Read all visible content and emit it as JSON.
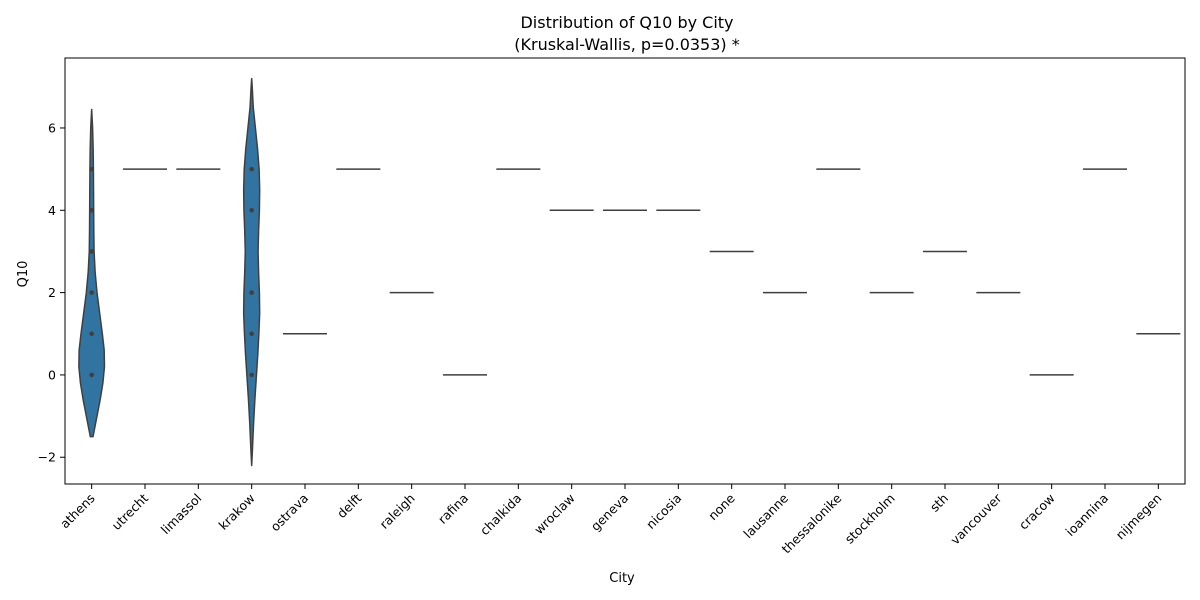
{
  "chart_data": {
    "type": "violin",
    "title": "Distribution of Q10 by City",
    "subtitle": "(Kruskal-Wallis, p=0.0353) *",
    "xlabel": "City",
    "ylabel": "Q10",
    "ylim": [
      -2.65,
      7.7
    ],
    "yticks": [
      -2,
      0,
      2,
      4,
      6
    ],
    "ytick_labels": [
      "−2",
      "0",
      "2",
      "4",
      "6"
    ],
    "grid": false,
    "legend": "none",
    "colors": {
      "fill": "#3274a1",
      "edge": "#3f3f3f",
      "point": "#3f3f3f"
    },
    "categories": [
      "athens",
      "utrecht",
      "limassol",
      "krakow",
      "ostrava",
      "delft",
      "raleigh",
      "rafina",
      "chalkida",
      "wroclaw",
      "geneva",
      "nicosia",
      "none",
      "lausanne",
      "thessalonike",
      "stockholm",
      "sth",
      "vancouver",
      "cracow",
      "ioannina",
      "nijmegen"
    ],
    "violins": [
      {
        "category": "athens",
        "points": [
          0,
          1,
          2,
          3,
          4,
          5
        ],
        "density": [
          {
            "y": -1.5,
            "w": 0.05
          },
          {
            "y": -1.3,
            "w": 0.11
          },
          {
            "y": -1.0,
            "w": 0.2
          },
          {
            "y": -0.6,
            "w": 0.32
          },
          {
            "y": -0.2,
            "w": 0.42
          },
          {
            "y": 0.2,
            "w": 0.48
          },
          {
            "y": 0.6,
            "w": 0.47
          },
          {
            "y": 1.0,
            "w": 0.4
          },
          {
            "y": 1.5,
            "w": 0.3
          },
          {
            "y": 2.0,
            "w": 0.2
          },
          {
            "y": 2.5,
            "w": 0.13
          },
          {
            "y": 3.0,
            "w": 0.09
          },
          {
            "y": 3.5,
            "w": 0.08
          },
          {
            "y": 4.0,
            "w": 0.075
          },
          {
            "y": 4.5,
            "w": 0.07
          },
          {
            "y": 5.0,
            "w": 0.065
          },
          {
            "y": 5.5,
            "w": 0.055
          },
          {
            "y": 6.0,
            "w": 0.035
          },
          {
            "y": 6.45,
            "w": 0.0
          }
        ]
      },
      {
        "category": "krakow",
        "points": [
          0,
          1,
          2,
          4,
          5
        ],
        "density": [
          {
            "y": -2.2,
            "w": 0.0
          },
          {
            "y": -1.8,
            "w": 0.03
          },
          {
            "y": -1.2,
            "w": 0.07
          },
          {
            "y": -0.6,
            "w": 0.12
          },
          {
            "y": 0.0,
            "w": 0.18
          },
          {
            "y": 0.5,
            "w": 0.23
          },
          {
            "y": 1.0,
            "w": 0.27
          },
          {
            "y": 1.5,
            "w": 0.3
          },
          {
            "y": 2.0,
            "w": 0.29
          },
          {
            "y": 2.5,
            "w": 0.26
          },
          {
            "y": 3.0,
            "w": 0.24
          },
          {
            "y": 3.5,
            "w": 0.26
          },
          {
            "y": 4.0,
            "w": 0.29
          },
          {
            "y": 4.5,
            "w": 0.3
          },
          {
            "y": 5.0,
            "w": 0.28
          },
          {
            "y": 5.5,
            "w": 0.22
          },
          {
            "y": 6.0,
            "w": 0.14
          },
          {
            "y": 6.5,
            "w": 0.06
          },
          {
            "y": 7.0,
            "w": 0.02
          },
          {
            "y": 7.2,
            "w": 0.0
          }
        ]
      }
    ],
    "single_values": [
      {
        "category": "utrecht",
        "value": 5
      },
      {
        "category": "limassol",
        "value": 5
      },
      {
        "category": "ostrava",
        "value": 1
      },
      {
        "category": "delft",
        "value": 5
      },
      {
        "category": "raleigh",
        "value": 2
      },
      {
        "category": "rafina",
        "value": 0
      },
      {
        "category": "chalkida",
        "value": 5
      },
      {
        "category": "wroclaw",
        "value": 4
      },
      {
        "category": "geneva",
        "value": 4
      },
      {
        "category": "nicosia",
        "value": 4
      },
      {
        "category": "none",
        "value": 3
      },
      {
        "category": "lausanne",
        "value": 2
      },
      {
        "category": "thessalonike",
        "value": 5
      },
      {
        "category": "stockholm",
        "value": 2
      },
      {
        "category": "sth",
        "value": 3
      },
      {
        "category": "vancouver",
        "value": 2
      },
      {
        "category": "cracow",
        "value": 0
      },
      {
        "category": "ioannina",
        "value": 5
      },
      {
        "category": "nijmegen",
        "value": 1
      }
    ]
  }
}
